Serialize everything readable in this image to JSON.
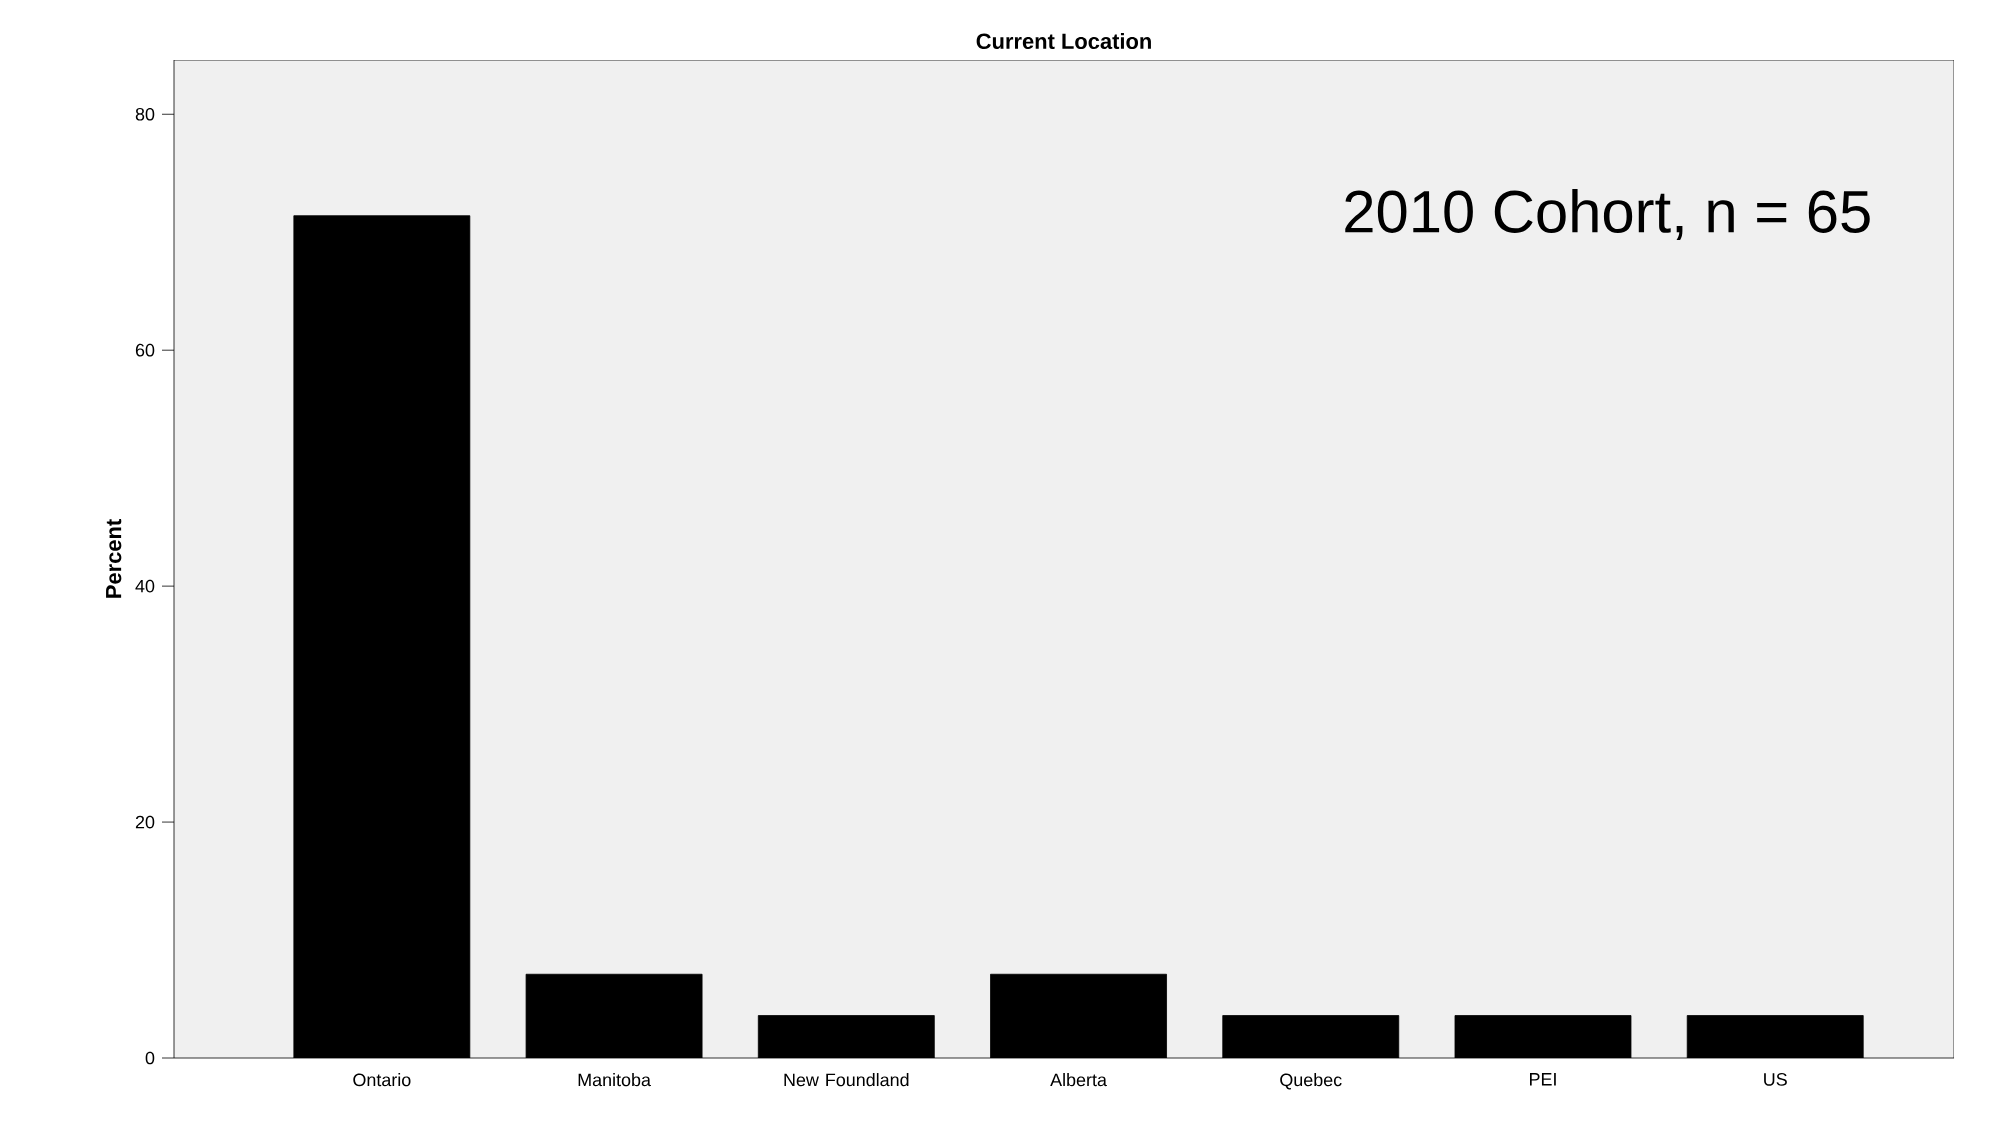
{
  "chart_data": {
    "type": "bar",
    "title": "Current Location",
    "ylabel": "Percent",
    "categories": [
      "Ontario",
      "Manitoba",
      "New Foundland",
      "Alberta",
      "Quebec",
      "PEI",
      "US"
    ],
    "values": [
      71.4,
      7.1,
      3.6,
      7.1,
      3.6,
      3.6,
      3.6
    ],
    "color": "#000000",
    "ylim": [
      0,
      84.6
    ],
    "yticks": [
      0,
      20,
      40,
      60,
      80
    ],
    "annotations": [
      "2010 Cohort, n = 65"
    ]
  }
}
